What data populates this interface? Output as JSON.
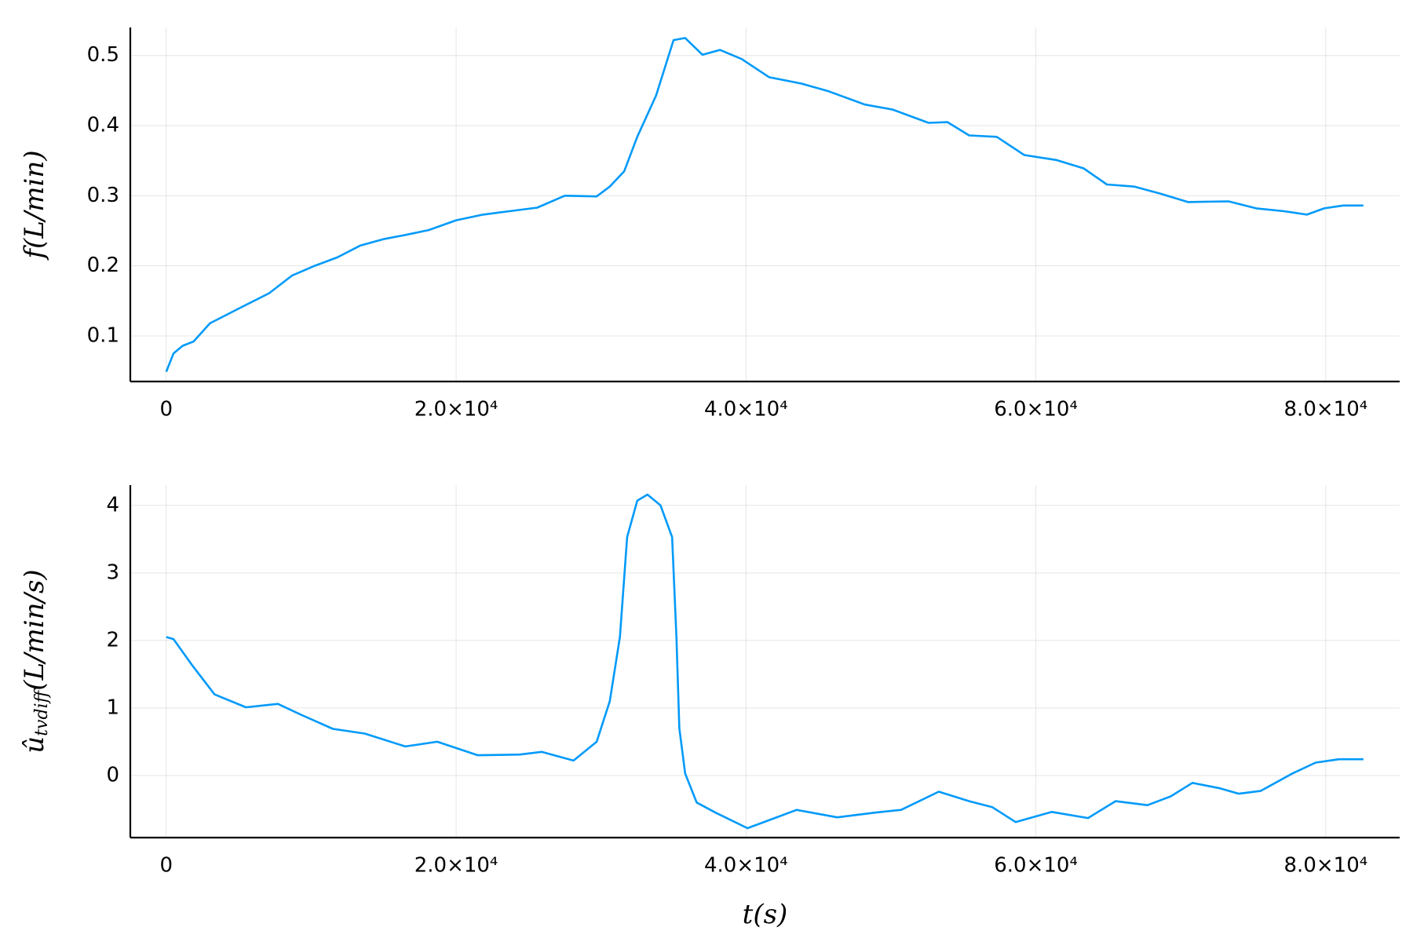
{
  "chart_data": [
    {
      "type": "line",
      "ylabel": "f(L/min)",
      "x": [
        0,
        500,
        1130,
        1880,
        3010,
        4900,
        7100,
        8670,
        10240,
        11800,
        13400,
        14970,
        16500,
        18100,
        20000,
        21850,
        23700,
        25600,
        27500,
        29700,
        30600,
        31600,
        32500,
        33800,
        35000,
        35800,
        37000,
        38200,
        39700,
        41600,
        43800,
        45700,
        48200,
        50100,
        52600,
        53900,
        55400,
        57300,
        59200,
        61400,
        63300,
        64900,
        66800,
        68600,
        70500,
        73300,
        75200,
        77100,
        78700,
        79900,
        81200,
        82600
      ],
      "series": [
        {
          "color": "#009af9",
          "values": [
            0.049,
            0.075,
            0.086,
            0.092,
            0.118,
            0.138,
            0.161,
            0.186,
            0.2,
            0.212,
            0.229,
            0.238,
            0.244,
            0.251,
            0.265,
            0.273,
            0.278,
            0.283,
            0.3,
            0.299,
            0.313,
            0.335,
            0.384,
            0.443,
            0.522,
            0.525,
            0.501,
            0.508,
            0.495,
            0.469,
            0.46,
            0.449,
            0.43,
            0.423,
            0.404,
            0.405,
            0.386,
            0.384,
            0.358,
            0.351,
            0.339,
            0.316,
            0.313,
            0.303,
            0.291,
            0.292,
            0.282,
            0.278,
            0.273,
            0.282,
            0.286,
            0.286
          ]
        }
      ],
      "xlim": [
        -2480,
        85100
      ],
      "xticks": [
        0,
        {
          "value": 20000,
          "label": "2.0×10⁴"
        },
        {
          "value": 40000,
          "label": "4.0×10⁴"
        },
        {
          "value": 60000,
          "label": "6.0×10⁴"
        },
        {
          "value": 80000,
          "label": "8.0×10⁴"
        }
      ],
      "ylim": [
        0.035,
        0.54
      ],
      "yticks": [
        0.1,
        0.2,
        0.3,
        0.4,
        0.5
      ],
      "grid": true
    },
    {
      "type": "line",
      "ylabel": {
        "text": "û",
        "sub": "tvdiff",
        "rest": "(L/min/s)"
      },
      "xlabel": "t(s)",
      "x": [
        0,
        500,
        1760,
        3330,
        5500,
        7700,
        9300,
        11500,
        13700,
        16500,
        18700,
        21500,
        24400,
        25900,
        28100,
        29700,
        30600,
        31300,
        31800,
        32500,
        33200,
        34100,
        34900,
        35200,
        35400,
        35800,
        36600,
        37900,
        40100,
        41000,
        43500,
        46300,
        48900,
        50700,
        53300,
        55400,
        57000,
        58600,
        61100,
        63600,
        65500,
        67700,
        69300,
        70800,
        72700,
        74000,
        75500,
        77700,
        79300,
        80900,
        82600
      ],
      "series": [
        {
          "color": "#009af9",
          "values": [
            2.05,
            2.02,
            1.64,
            1.2,
            1.01,
            1.06,
            0.9,
            0.69,
            0.62,
            0.43,
            0.5,
            0.3,
            0.31,
            0.35,
            0.22,
            0.5,
            1.1,
            2.05,
            3.53,
            4.07,
            4.16,
            4.0,
            3.53,
            2.05,
            0.7,
            0.03,
            -0.4,
            -0.55,
            -0.78,
            -0.71,
            -0.51,
            -0.62,
            -0.55,
            -0.51,
            -0.24,
            -0.38,
            -0.47,
            -0.69,
            -0.54,
            -0.63,
            -0.38,
            -0.44,
            -0.31,
            -0.11,
            -0.19,
            -0.27,
            -0.23,
            0.03,
            0.19,
            0.24,
            0.24
          ]
        }
      ],
      "xlim": [
        -2480,
        85100
      ],
      "xticks": [
        0,
        {
          "value": 20000,
          "label": "2.0×10⁴"
        },
        {
          "value": 40000,
          "label": "4.0×10⁴"
        },
        {
          "value": 60000,
          "label": "6.0×10⁴"
        },
        {
          "value": 80000,
          "label": "8.0×10⁴"
        }
      ],
      "ylim": [
        -0.92,
        4.3
      ],
      "yticks": [
        0,
        1,
        2,
        3,
        4
      ],
      "grid": true
    }
  ]
}
